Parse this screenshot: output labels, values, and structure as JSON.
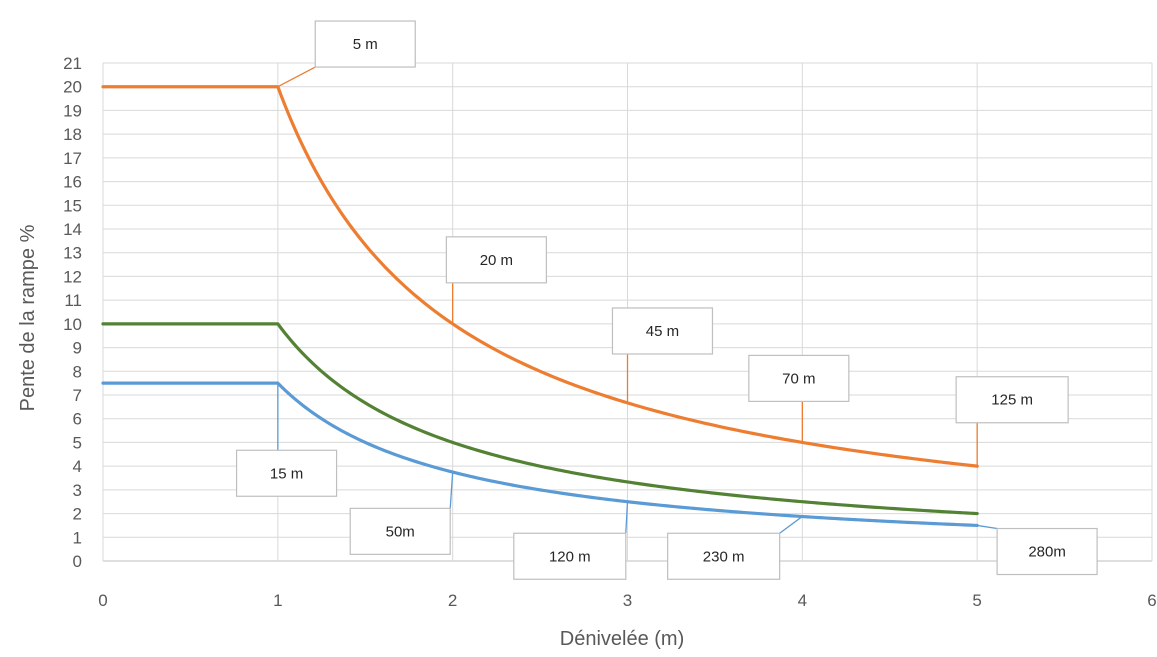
{
  "chart_data": {
    "type": "line",
    "xlabel": "Dénivelée (m)",
    "ylabel": "Pente de la rampe %",
    "xlim": [
      0,
      6
    ],
    "ylim": [
      0,
      21
    ],
    "x_ticks": [
      "0",
      "1",
      "2",
      "3",
      "4",
      "5",
      "6"
    ],
    "y_ticks": [
      "0",
      "1",
      "2",
      "3",
      "4",
      "5",
      "6",
      "7",
      "8",
      "9",
      "10",
      "11",
      "12",
      "13",
      "14",
      "15",
      "16",
      "17",
      "18",
      "19",
      "20",
      "21"
    ],
    "grid": true,
    "legend": "none",
    "series": [
      {
        "color": "#ED7D31",
        "x": [
          0,
          1,
          1.25,
          1.5,
          1.75,
          2,
          2.5,
          3,
          3.5,
          4,
          4.5,
          5
        ],
        "values": [
          20,
          20,
          16,
          13.33,
          11.43,
          10,
          8,
          6.67,
          5.71,
          5,
          4.44,
          4
        ]
      },
      {
        "color": "#548235",
        "x": [
          0,
          1,
          1.25,
          1.5,
          1.75,
          2,
          2.5,
          3,
          3.5,
          4,
          4.5,
          5
        ],
        "values": [
          10,
          10,
          8,
          6.67,
          5.71,
          5,
          4,
          3.33,
          2.86,
          2.5,
          2.22,
          2
        ]
      },
      {
        "color": "#5B9BD5",
        "x": [
          0,
          1,
          1.25,
          1.5,
          1.75,
          2,
          2.5,
          3,
          3.5,
          4,
          4.5,
          5
        ],
        "values": [
          7.5,
          7.5,
          6,
          5,
          4.29,
          3.75,
          3,
          2.5,
          2.14,
          1.88,
          1.67,
          1.5
        ]
      }
    ],
    "annotations": [
      {
        "text": "5 m",
        "series": 0,
        "x": 1,
        "y": 20,
        "box_x": 1.5,
        "box_y": 21.8,
        "color": "#ED7D31"
      },
      {
        "text": "20 m",
        "series": 0,
        "x": 2,
        "y": 10,
        "box_x": 2.25,
        "box_y": 12.7,
        "color": "#ED7D31"
      },
      {
        "text": "45 m",
        "series": 0,
        "x": 3,
        "y": 6.67,
        "box_x": 3.2,
        "box_y": 9.7,
        "color": "#ED7D31"
      },
      {
        "text": "70 m",
        "series": 0,
        "x": 4,
        "y": 5,
        "box_x": 3.98,
        "box_y": 7.7,
        "color": "#ED7D31"
      },
      {
        "text": "125 m",
        "series": 0,
        "x": 5,
        "y": 4,
        "box_x": 5.2,
        "box_y": 6.8,
        "color": "#ED7D31"
      },
      {
        "text": "15 m",
        "series": 2,
        "x": 1,
        "y": 7.5,
        "box_x": 1.05,
        "box_y": 3.7,
        "color": "#5B9BD5"
      },
      {
        "text": "50m",
        "series": 2,
        "x": 2,
        "y": 3.75,
        "box_x": 1.7,
        "box_y": 1.25,
        "color": "#5B9BD5"
      },
      {
        "text": "120 m",
        "series": 2,
        "x": 3,
        "y": 2.5,
        "box_x": 2.67,
        "box_y": 0.2,
        "color": "#5B9BD5"
      },
      {
        "text": "230 m",
        "series": 2,
        "x": 4,
        "y": 1.88,
        "box_x": 3.55,
        "box_y": 0.2,
        "color": "#5B9BD5"
      },
      {
        "text": "280m",
        "series": 2,
        "x": 5,
        "y": 1.5,
        "box_x": 5.4,
        "box_y": 0.4,
        "color": "#5B9BD5"
      }
    ]
  }
}
